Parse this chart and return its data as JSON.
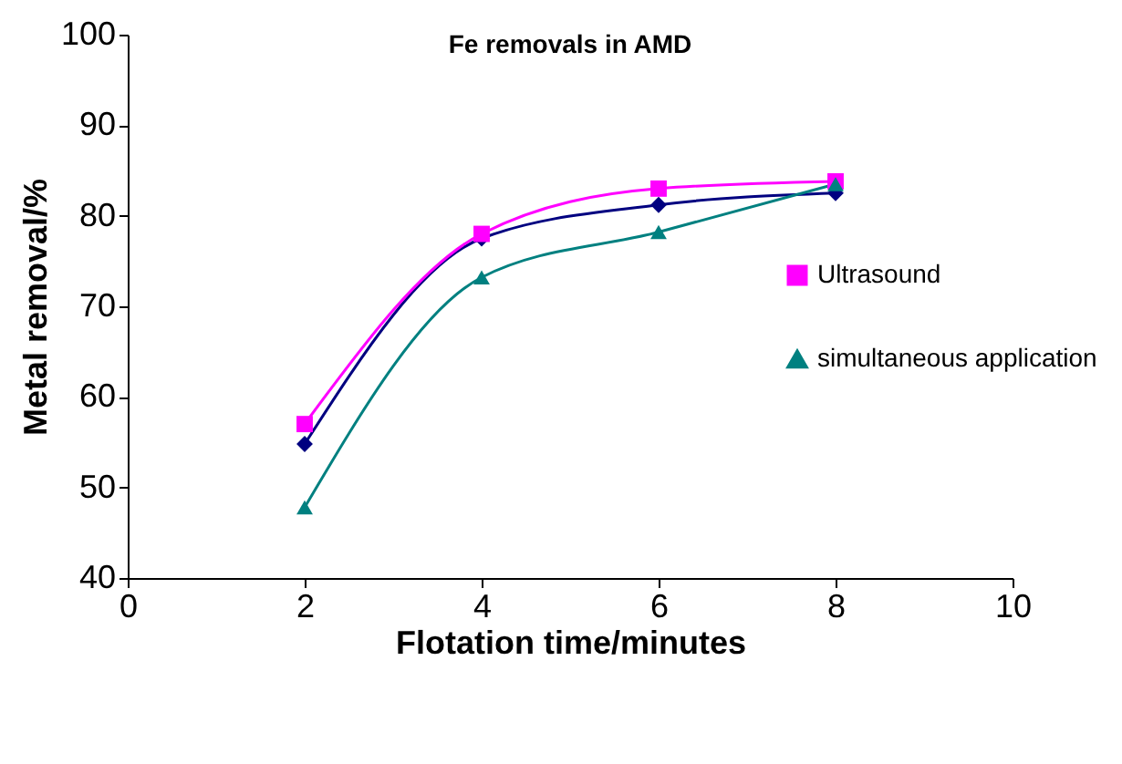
{
  "chart_data": {
    "type": "line",
    "title": "Fe removals in AMD",
    "xlabel": "Flotation time/minutes",
    "ylabel": "Metal removal/%",
    "x": [
      2,
      4,
      6,
      8
    ],
    "series": [
      {
        "color": "#000080",
        "marker": "diamond",
        "values": [
          54.8,
          77.5,
          81.2,
          82.5
        ]
      },
      {
        "name": "Ultrasound",
        "color": "#ff00ff",
        "marker": "square",
        "values": [
          57,
          78,
          83,
          83.8
        ]
      },
      {
        "name": "simultaneous application",
        "color": "#008080",
        "marker": "triangle",
        "values": [
          47.8,
          73.2,
          78.2,
          83.5
        ]
      }
    ],
    "xlim": [
      0,
      10
    ],
    "xticks": [
      0,
      2,
      4,
      6,
      8,
      10
    ],
    "ylim": [
      40,
      100
    ],
    "yticks": [
      40,
      50,
      60,
      70,
      80,
      90,
      100
    ],
    "grid": false,
    "legend": "right"
  }
}
